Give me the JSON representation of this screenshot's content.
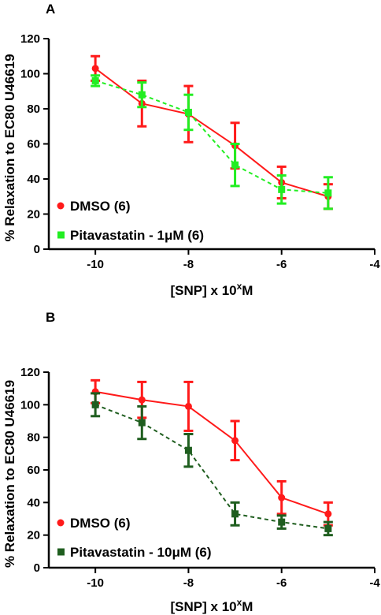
{
  "colors": {
    "red": "#ff1a1a",
    "light_green": "#22ee22",
    "dark_green": "#1f5e1f",
    "axis": "#000000"
  },
  "chart_data": [
    {
      "type": "line",
      "panel_label": "A",
      "xlabel_main": "[SNP] x 10",
      "xlabel_sup": "x",
      "xlabel_unit": "M",
      "ylabel": "% Relaxation to EC80 U46619",
      "xlim": [
        -11,
        -4
      ],
      "ylim": [
        0,
        120
      ],
      "xticks": [
        -10,
        -8,
        -6,
        -4
      ],
      "yticks": [
        0,
        20,
        40,
        60,
        80,
        100,
        120
      ],
      "grid": false,
      "legend_position": "bottom-left",
      "x": [
        -10,
        -9,
        -8,
        -7,
        -6,
        -5
      ],
      "series": [
        {
          "name": "DMSO (6)",
          "color": "#ff1a1a",
          "marker": "circle",
          "dashed": false,
          "values": [
            103,
            83,
            77,
            59,
            38,
            30
          ],
          "errors": [
            7,
            13,
            16,
            13,
            9,
            7
          ]
        },
        {
          "name": "Pitavastatin - 1μM (6)",
          "color": "#22ee22",
          "marker": "square",
          "dashed": true,
          "values": [
            96,
            88,
            78,
            48,
            34,
            32
          ],
          "errors": [
            3,
            7,
            10,
            12,
            8,
            9
          ]
        }
      ]
    },
    {
      "type": "line",
      "panel_label": "B",
      "xlabel_main": "[SNP] x 10",
      "xlabel_sup": "x",
      "xlabel_unit": "M",
      "ylabel": "% Relaxation to EC80 U46619",
      "xlim": [
        -11,
        -4
      ],
      "ylim": [
        0,
        120
      ],
      "xticks": [
        -10,
        -8,
        -6,
        -4
      ],
      "yticks": [
        0,
        20,
        40,
        60,
        80,
        100,
        120
      ],
      "grid": false,
      "legend_position": "bottom-left",
      "x": [
        -10,
        -9,
        -8,
        -7,
        -6,
        -5
      ],
      "series": [
        {
          "name": "DMSO (6)",
          "color": "#ff1a1a",
          "marker": "circle",
          "dashed": false,
          "values": [
            108,
            103,
            99,
            78,
            43,
            33
          ],
          "errors": [
            7,
            11,
            15,
            12,
            10,
            7
          ]
        },
        {
          "name": "Pitavastatin - 10μM (6)",
          "color": "#1f5e1f",
          "marker": "square",
          "dashed": true,
          "values": [
            100,
            89,
            72,
            33,
            28,
            24
          ],
          "errors": [
            7,
            10,
            10,
            7,
            4,
            4
          ]
        }
      ]
    }
  ]
}
